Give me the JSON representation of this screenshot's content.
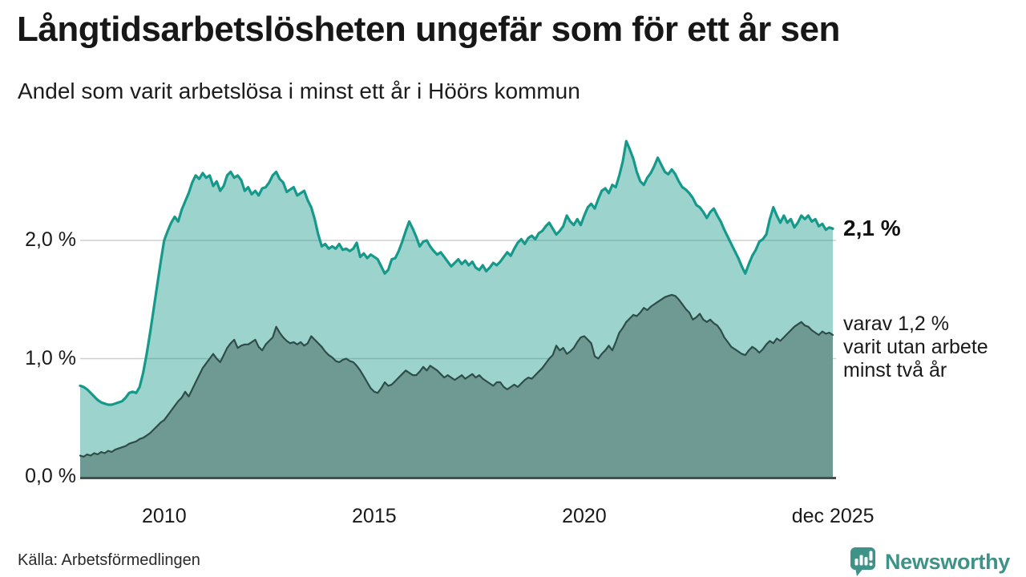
{
  "header": {
    "title": "Långtidsarbetslösheten ungefär som för ett år sen",
    "subtitle": "Andel som varit arbetslösa i minst ett år i Höörs kommun"
  },
  "chart_data": {
    "type": "area",
    "x_unit": "month",
    "x_start": "2008-01",
    "x_end": "2025-12",
    "ylim": [
      0,
      2.95
    ],
    "grid": true,
    "colors": {
      "line_1yr": "#15998b",
      "fill_1yr": "rgba(21,150,137,0.42)",
      "line_2yr": "#2e4d48",
      "fill_2yr": "#6f9a94",
      "gridline": "#cfcfcf",
      "baseline": "#44504c"
    },
    "yticks": [
      {
        "value": 0,
        "label": "0,0 %"
      },
      {
        "value": 1,
        "label": "1,0 %"
      },
      {
        "value": 2,
        "label": "2,0 %"
      }
    ],
    "xticks": [
      {
        "year": 2010.0,
        "label": "2010"
      },
      {
        "year": 2015.0,
        "label": "2015"
      },
      {
        "year": 2020.0,
        "label": "2020"
      },
      {
        "year": 2025.92,
        "label": "dec 2025"
      }
    ],
    "annotations": {
      "last_value": "2,1 %",
      "varav_line1": "varav 1,2 %",
      "varav_line2": "varit utan arbete",
      "varav_line3": "minst två år"
    },
    "series": [
      {
        "name": "Andel arbetslösa minst ett år",
        "last_value_pct": 2.1,
        "values": [
          0.77,
          0.76,
          0.74,
          0.71,
          0.68,
          0.65,
          0.63,
          0.62,
          0.61,
          0.61,
          0.62,
          0.63,
          0.64,
          0.67,
          0.71,
          0.72,
          0.71,
          0.76,
          0.88,
          1.04,
          1.22,
          1.42,
          1.62,
          1.82,
          2.0,
          2.08,
          2.15,
          2.2,
          2.16,
          2.26,
          2.33,
          2.4,
          2.49,
          2.55,
          2.52,
          2.57,
          2.53,
          2.55,
          2.46,
          2.5,
          2.42,
          2.46,
          2.55,
          2.58,
          2.53,
          2.55,
          2.51,
          2.42,
          2.45,
          2.39,
          2.42,
          2.38,
          2.44,
          2.45,
          2.49,
          2.55,
          2.58,
          2.52,
          2.49,
          2.41,
          2.43,
          2.45,
          2.38,
          2.4,
          2.42,
          2.34,
          2.28,
          2.18,
          2.05,
          1.95,
          1.97,
          1.93,
          1.95,
          1.93,
          1.97,
          1.92,
          1.93,
          1.91,
          1.93,
          1.98,
          1.86,
          1.89,
          1.85,
          1.88,
          1.86,
          1.84,
          1.78,
          1.72,
          1.75,
          1.84,
          1.85,
          1.91,
          1.99,
          2.08,
          2.16,
          2.1,
          2.03,
          1.95,
          1.99,
          2.0,
          1.95,
          1.91,
          1.88,
          1.9,
          1.86,
          1.82,
          1.78,
          1.81,
          1.84,
          1.8,
          1.83,
          1.79,
          1.82,
          1.77,
          1.75,
          1.79,
          1.74,
          1.77,
          1.81,
          1.79,
          1.82,
          1.86,
          1.9,
          1.87,
          1.93,
          1.98,
          2.01,
          1.97,
          2.02,
          2.04,
          2.01,
          2.06,
          2.08,
          2.12,
          2.15,
          2.1,
          2.05,
          2.08,
          2.12,
          2.21,
          2.16,
          2.13,
          2.18,
          2.13,
          2.21,
          2.28,
          2.31,
          2.27,
          2.35,
          2.42,
          2.44,
          2.4,
          2.47,
          2.45,
          2.55,
          2.67,
          2.84,
          2.77,
          2.69,
          2.58,
          2.5,
          2.47,
          2.53,
          2.57,
          2.63,
          2.7,
          2.64,
          2.58,
          2.56,
          2.6,
          2.56,
          2.5,
          2.45,
          2.43,
          2.4,
          2.36,
          2.3,
          2.28,
          2.24,
          2.19,
          2.24,
          2.27,
          2.21,
          2.16,
          2.09,
          2.03,
          1.97,
          1.91,
          1.85,
          1.78,
          1.72,
          1.8,
          1.87,
          1.92,
          1.99,
          2.01,
          2.05,
          2.18,
          2.28,
          2.21,
          2.15,
          2.21,
          2.15,
          2.18,
          2.11,
          2.15,
          2.21,
          2.18,
          2.21,
          2.16,
          2.18,
          2.12,
          2.14,
          2.09,
          2.11,
          2.1
        ]
      },
      {
        "name": "Andel arbetslösa minst två år",
        "last_value_pct": 1.2,
        "values": [
          0.18,
          0.17,
          0.19,
          0.18,
          0.2,
          0.19,
          0.21,
          0.2,
          0.22,
          0.21,
          0.23,
          0.24,
          0.25,
          0.26,
          0.28,
          0.29,
          0.3,
          0.32,
          0.33,
          0.35,
          0.37,
          0.4,
          0.43,
          0.46,
          0.48,
          0.52,
          0.56,
          0.6,
          0.64,
          0.67,
          0.72,
          0.68,
          0.74,
          0.8,
          0.86,
          0.92,
          0.96,
          1.0,
          1.04,
          1.0,
          0.97,
          1.03,
          1.09,
          1.13,
          1.16,
          1.09,
          1.11,
          1.12,
          1.12,
          1.14,
          1.16,
          1.1,
          1.07,
          1.12,
          1.15,
          1.18,
          1.27,
          1.22,
          1.18,
          1.15,
          1.13,
          1.14,
          1.12,
          1.14,
          1.11,
          1.13,
          1.19,
          1.16,
          1.13,
          1.1,
          1.06,
          1.03,
          1.01,
          0.98,
          0.97,
          0.99,
          1.0,
          0.98,
          0.97,
          0.94,
          0.9,
          0.85,
          0.8,
          0.75,
          0.72,
          0.71,
          0.75,
          0.8,
          0.77,
          0.78,
          0.81,
          0.84,
          0.87,
          0.9,
          0.88,
          0.86,
          0.86,
          0.89,
          0.93,
          0.9,
          0.94,
          0.92,
          0.9,
          0.87,
          0.84,
          0.86,
          0.84,
          0.82,
          0.84,
          0.86,
          0.83,
          0.85,
          0.87,
          0.84,
          0.86,
          0.83,
          0.81,
          0.79,
          0.77,
          0.8,
          0.8,
          0.76,
          0.74,
          0.76,
          0.78,
          0.76,
          0.79,
          0.82,
          0.84,
          0.83,
          0.86,
          0.89,
          0.92,
          0.96,
          1.0,
          1.03,
          1.11,
          1.07,
          1.09,
          1.04,
          1.06,
          1.09,
          1.14,
          1.18,
          1.19,
          1.16,
          1.13,
          1.02,
          1.0,
          1.04,
          1.07,
          1.11,
          1.07,
          1.14,
          1.22,
          1.26,
          1.31,
          1.34,
          1.37,
          1.36,
          1.39,
          1.43,
          1.41,
          1.44,
          1.46,
          1.48,
          1.5,
          1.52,
          1.53,
          1.54,
          1.53,
          1.5,
          1.46,
          1.42,
          1.39,
          1.33,
          1.35,
          1.38,
          1.33,
          1.31,
          1.33,
          1.3,
          1.28,
          1.24,
          1.18,
          1.14,
          1.1,
          1.08,
          1.06,
          1.04,
          1.03,
          1.07,
          1.1,
          1.08,
          1.05,
          1.08,
          1.12,
          1.15,
          1.13,
          1.17,
          1.15,
          1.18,
          1.21,
          1.24,
          1.27,
          1.29,
          1.31,
          1.28,
          1.27,
          1.24,
          1.22,
          1.2,
          1.23,
          1.21,
          1.22,
          1.2
        ]
      }
    ]
  },
  "footer": {
    "source": "Källa: Arbetsförmedlingen",
    "brand": "Newsworthy"
  }
}
